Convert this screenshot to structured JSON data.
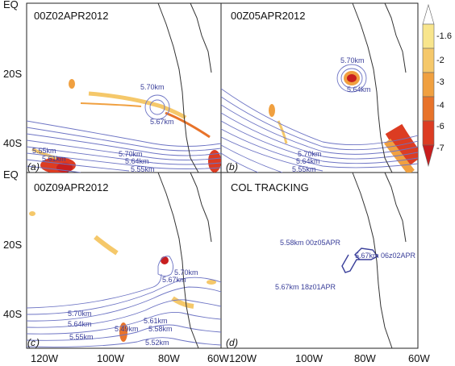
{
  "chart_data": [
    {
      "type": "other",
      "panel": "a",
      "title": "00Z02APR2012",
      "contour_labels": [
        "5.70km",
        "5.67km",
        "5.55km",
        "5.61km",
        "5.70km",
        "5.64km",
        "5.55km"
      ]
    },
    {
      "type": "other",
      "panel": "b",
      "title": "00Z05APR2012",
      "contour_labels": [
        "5.70km",
        "5.64km",
        "5.70km",
        "5.64km",
        "5.55km"
      ]
    },
    {
      "type": "other",
      "panel": "c",
      "title": "00Z09APR2012",
      "contour_labels": [
        "5.70km",
        "5.67km",
        "5.70km",
        "5.64km",
        "5.55km",
        "5.49km",
        "5.61km",
        "5.58km",
        "5.52km"
      ]
    },
    {
      "type": "other",
      "panel": "d",
      "title": "COL TRACKING",
      "track_labels": [
        "5.58km 00z05APR",
        "5.67km 06z02APR",
        "5.67km 18z01APR"
      ]
    }
  ],
  "axes": {
    "y_ticks": [
      "EQ",
      "20S",
      "40S"
    ],
    "x_ticks_left": [
      "120W",
      "100W",
      "80W",
      "60W"
    ],
    "x_ticks_right": [
      "120W",
      "100W",
      "80W",
      "60W"
    ]
  },
  "colorbar": {
    "ticks": [
      "-1.6",
      "-2",
      "-3",
      "-4",
      "-6",
      "-7"
    ],
    "colors": [
      "#ffffff",
      "#f8e58c",
      "#f5c86a",
      "#f0a040",
      "#e8732a",
      "#dc3c22",
      "#c81e1e"
    ]
  }
}
